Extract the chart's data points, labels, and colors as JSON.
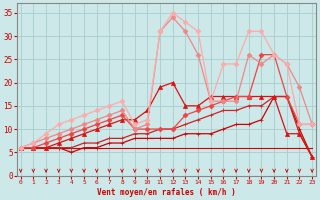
{
  "bg_color": "#cce8e8",
  "grid_color": "#aacccc",
  "x_label": "Vent moyen/en rafales ( km/h )",
  "x_ticks": [
    0,
    1,
    2,
    3,
    4,
    5,
    6,
    7,
    8,
    9,
    10,
    11,
    12,
    13,
    14,
    15,
    16,
    17,
    18,
    19,
    20,
    21,
    22,
    23
  ],
  "y_ticks": [
    0,
    5,
    10,
    15,
    20,
    25,
    30,
    35
  ],
  "ylim": [
    0,
    37
  ],
  "xlim": [
    -0.3,
    23.3
  ],
  "lines": [
    {
      "x": [
        0,
        1,
        2,
        3,
        4,
        5,
        6,
        7,
        8,
        9,
        10,
        11,
        12,
        13,
        14,
        15,
        16,
        17,
        18,
        19,
        20,
        21,
        22,
        23
      ],
      "y": [
        6,
        6,
        6,
        6,
        6,
        6,
        6,
        6,
        6,
        6,
        6,
        6,
        6,
        6,
        6,
        6,
        6,
        6,
        6,
        6,
        6,
        6,
        6,
        6
      ],
      "color": "#cc0000",
      "lw": 0.8,
      "marker": null,
      "markersize": 0,
      "zorder": 2
    },
    {
      "x": [
        0,
        1,
        2,
        3,
        4,
        5,
        6,
        7,
        8,
        9,
        10,
        11,
        12,
        13,
        14,
        15,
        16,
        17,
        18,
        19,
        20,
        21,
        22,
        23
      ],
      "y": [
        6,
        6,
        6,
        6,
        5,
        6,
        6,
        7,
        7,
        8,
        8,
        8,
        8,
        9,
        9,
        9,
        10,
        11,
        11,
        12,
        17,
        17,
        10,
        4
      ],
      "color": "#cc0000",
      "lw": 0.9,
      "marker": "+",
      "markersize": 3,
      "zorder": 3
    },
    {
      "x": [
        0,
        1,
        2,
        3,
        4,
        5,
        6,
        7,
        8,
        9,
        10,
        11,
        12,
        13,
        14,
        15,
        16,
        17,
        18,
        19,
        20,
        21,
        22,
        23
      ],
      "y": [
        6,
        6,
        6,
        6,
        6,
        7,
        7,
        8,
        8,
        9,
        9,
        10,
        10,
        11,
        12,
        13,
        14,
        14,
        15,
        15,
        17,
        17,
        9,
        4
      ],
      "color": "#cc2222",
      "lw": 0.9,
      "marker": "+",
      "markersize": 3,
      "zorder": 3
    },
    {
      "x": [
        0,
        1,
        2,
        3,
        4,
        5,
        6,
        7,
        8,
        9,
        10,
        11,
        12,
        13,
        14,
        15,
        16,
        17,
        18,
        19,
        20,
        21,
        22,
        23
      ],
      "y": [
        6,
        6,
        6,
        7,
        8,
        9,
        10,
        11,
        12,
        12,
        14,
        19,
        20,
        15,
        15,
        17,
        17,
        17,
        17,
        17,
        17,
        9,
        9,
        4
      ],
      "color": "#dd1111",
      "lw": 0.9,
      "marker": "^",
      "markersize": 3,
      "zorder": 3
    },
    {
      "x": [
        0,
        1,
        2,
        3,
        4,
        5,
        6,
        7,
        8,
        9,
        10,
        11,
        12,
        13,
        14,
        15,
        16,
        17,
        18,
        19,
        20,
        21,
        22,
        23
      ],
      "y": [
        6,
        6,
        7,
        8,
        9,
        10,
        11,
        12,
        13,
        10,
        10,
        10,
        10,
        13,
        14,
        15,
        16,
        17,
        17,
        26,
        26,
        17,
        11,
        11
      ],
      "color": "#ee4444",
      "lw": 0.9,
      "marker": "D",
      "markersize": 2.5,
      "zorder": 3
    },
    {
      "x": [
        0,
        1,
        2,
        3,
        4,
        5,
        6,
        7,
        8,
        9,
        10,
        11,
        12,
        13,
        14,
        15,
        16,
        17,
        18,
        19,
        20,
        21,
        22,
        23
      ],
      "y": [
        6,
        7,
        8,
        9,
        10,
        11,
        12,
        13,
        14,
        10,
        11,
        31,
        34,
        31,
        26,
        16,
        16,
        16,
        26,
        24,
        26,
        24,
        19,
        11
      ],
      "color": "#ee8888",
      "lw": 0.9,
      "marker": "D",
      "markersize": 2.5,
      "zorder": 3
    },
    {
      "x": [
        0,
        1,
        2,
        3,
        4,
        5,
        6,
        7,
        8,
        9,
        10,
        11,
        12,
        13,
        14,
        15,
        16,
        17,
        18,
        19,
        20,
        21,
        22,
        23
      ],
      "y": [
        6,
        7,
        9,
        11,
        12,
        13,
        14,
        15,
        16,
        11,
        12,
        31,
        35,
        33,
        31,
        16,
        24,
        24,
        31,
        31,
        26,
        24,
        11,
        11
      ],
      "color": "#ffaaaa",
      "lw": 0.9,
      "marker": "D",
      "markersize": 2.5,
      "zorder": 3
    }
  ]
}
